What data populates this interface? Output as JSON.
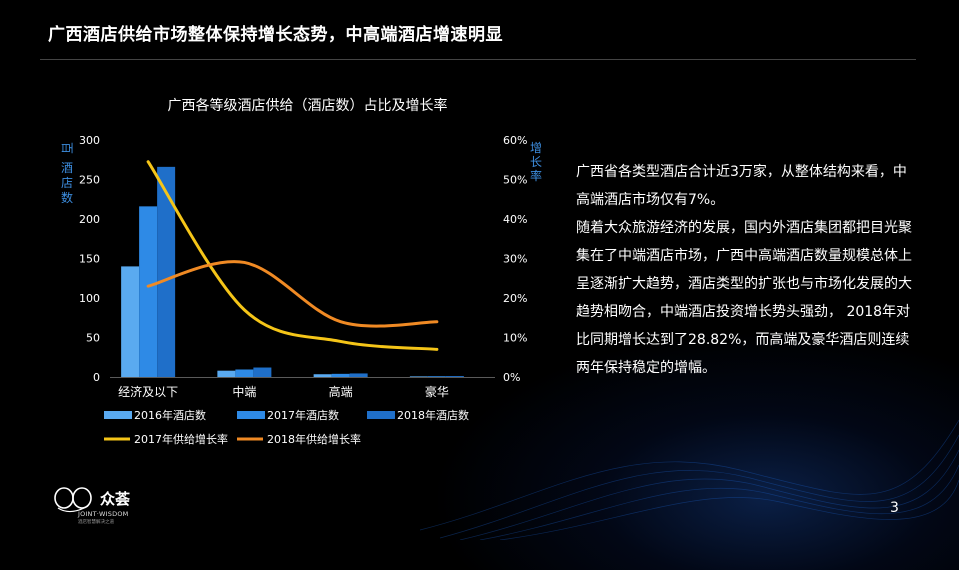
{
  "page": {
    "title": "广西酒店供给市场整体保持增长态势，中高端酒店增速明显",
    "page_number": "3",
    "logo_name": "众荟",
    "logo_en": "JOINT·WISDOM",
    "logo_sub": "酒店智慧解决之道",
    "body_paragraphs": [
      "广西省各类型酒店合计近3万家，从整体结构来看，中高端酒店市场仅有7%。",
      "随着大众旅游经济的发展，国内外酒店集团都把目光聚集在了中端酒店市场，广西中高端酒店数量规模总体上呈逐渐扩大趋势，酒店类型的扩张也与市场化发展的大趋势相吻合，中端酒店投资增长势头强劲， 2018年对比同期增长达到了28.82%，而高端及豪华酒店则连续两年保持稳定的增幅。"
    ]
  },
  "chart_data": {
    "type": "bar",
    "title": "广西各等级酒店供给（酒店数）占比及增长率",
    "ylabel_left": "酒店数",
    "ylabel_left_unit": "百",
    "ylabel_right": "增长率",
    "categories": [
      "经济及以下",
      "中端",
      "高端",
      "豪华"
    ],
    "ylim_left": [
      0,
      300
    ],
    "yticks_left": [
      "0",
      "50",
      "100",
      "150",
      "200",
      "250",
      "300"
    ],
    "ylim_right": [
      0,
      0.6
    ],
    "yticks_right": [
      "0%",
      "10%",
      "20%",
      "30%",
      "40%",
      "50%",
      "60%"
    ],
    "bar_series": [
      {
        "name": "2016年酒店数",
        "color": "#5aaaf0",
        "values": [
          140,
          8,
          3.5,
          0.8
        ]
      },
      {
        "name": "2017年酒店数",
        "color": "#2e8ae6",
        "values": [
          216,
          9.5,
          4,
          1
        ]
      },
      {
        "name": "2018年酒店数",
        "color": "#1f6fc9",
        "values": [
          266,
          12,
          4.5,
          1.2
        ]
      }
    ],
    "line_series": [
      {
        "name": "2017年供给增长率",
        "color": "#f5c518",
        "values": [
          0.545,
          0.17,
          0.09,
          0.07
        ]
      },
      {
        "name": "2018年供给增长率",
        "color": "#f08a24",
        "values": [
          0.23,
          0.29,
          0.14,
          0.14
        ]
      }
    ],
    "grid": false,
    "legend_position": "bottom"
  },
  "colors": {
    "background": "#000000",
    "text": "#ffffff",
    "axis_label_blue": "#3d8ee0"
  }
}
